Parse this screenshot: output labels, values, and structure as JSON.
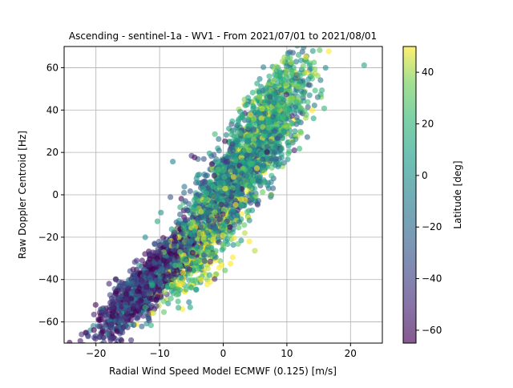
{
  "chart_data": {
    "type": "scatter",
    "title": "Ascending - sentinel-1a - WV1 - From 2021/07/01 to 2021/08/01",
    "xlabel": "Radial Wind Speed Model ECMWF (0.125) [m/s]",
    "ylabel": "Raw Doppler Centroid [Hz]",
    "xlim": [
      -25,
      25
    ],
    "ylim": [
      -70,
      70
    ],
    "xticks": [
      -20,
      -10,
      0,
      10,
      20
    ],
    "yticks": [
      -60,
      -40,
      -20,
      0,
      20,
      40,
      60
    ],
    "grid": true,
    "colorbar": {
      "label": "Latitude [deg]",
      "range": [
        -65,
        50
      ],
      "ticks": [
        -60,
        -40,
        -20,
        0,
        20,
        40
      ],
      "colormap": "viridis",
      "alpha": 0.6
    },
    "point_count_estimate": 4000,
    "point_cloud": {
      "description": "dense positively correlated cloud",
      "clusters": [
        {
          "x_center": -12,
          "y_center": -42,
          "lat_center": -45,
          "x_spread": 4,
          "y_spread": 10,
          "weight": 0.35
        },
        {
          "x_center": -4,
          "y_center": -25,
          "lat_center": 35,
          "x_spread": 3.5,
          "y_spread": 15,
          "weight": 0.15
        },
        {
          "x_center": 0,
          "y_center": 0,
          "lat_center": -15,
          "x_spread": 4,
          "y_spread": 18,
          "weight": 0.2
        },
        {
          "x_center": 5,
          "y_center": 20,
          "lat_center": 10,
          "x_spread": 4,
          "y_spread": 15,
          "weight": 0.2
        },
        {
          "x_center": 8,
          "y_center": 45,
          "lat_center": 15,
          "x_spread": 3,
          "y_spread": 12,
          "weight": 0.1
        }
      ],
      "slope_hz_per_ms": 3.6,
      "intercept_hz": 0
    }
  }
}
